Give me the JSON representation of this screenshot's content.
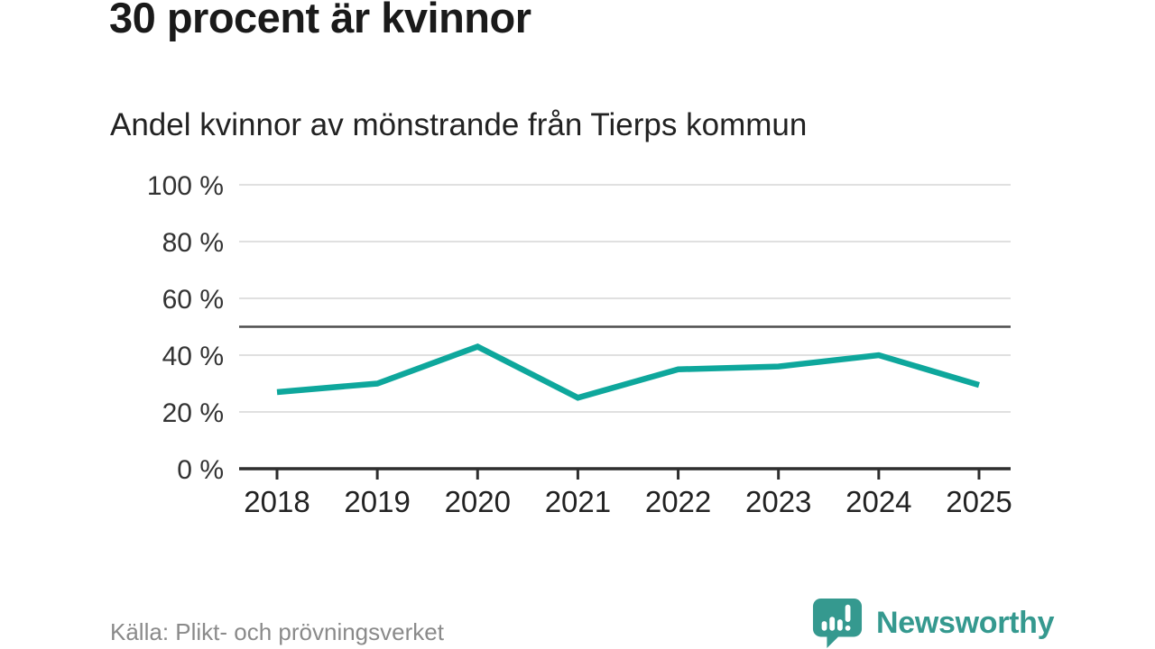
{
  "header": {
    "title": "30 procent är kvinnor",
    "subtitle": "Andel kvinnor av mönstrande från Tierps kommun"
  },
  "chart_data": {
    "type": "line",
    "title": "30 procent är kvinnor",
    "subtitle": "Andel kvinnor av mönstrande från Tierps kommun",
    "x": [
      "2018",
      "2019",
      "2020",
      "2021",
      "2022",
      "2023",
      "2024",
      "2025"
    ],
    "series": [
      {
        "name": "Andel kvinnor av mönstrande",
        "values": [
          27,
          30,
          43,
          25,
          35,
          36,
          40,
          29.5
        ]
      }
    ],
    "xlabel": "",
    "ylabel": "",
    "ylim": [
      0,
      100
    ],
    "yticks": [
      0,
      20,
      40,
      60,
      80,
      100
    ],
    "ytick_labels": [
      "0 %",
      "20 %",
      "40 %",
      "60 %",
      "80 %",
      "100 %"
    ],
    "reference_line": 50,
    "grid": true,
    "legend_position": "none",
    "colors": {
      "line": "#0ea79c",
      "reference": "#4d4d4d",
      "grid": "#e0e0e0",
      "axis": "#2e2e2e"
    }
  },
  "footer": {
    "source": "Källa: Plikt- och prövningsverket",
    "brand": "Newsworthy",
    "brand_color": "#35998f",
    "logo_icon": "bar-chart-speech-bubble-icon"
  }
}
